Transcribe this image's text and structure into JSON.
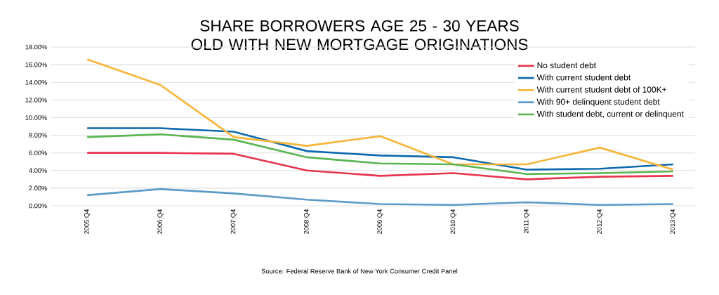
{
  "chart_data": {
    "type": "line",
    "title": "SHARE BORROWERS AGE 25 - 30 YEARS OLD WITH NEW MORTGAGE ORIGINATIONS",
    "categories": [
      "2005:Q4",
      "2006:Q4",
      "2007:Q4",
      "2008:Q4",
      "2009:Q4",
      "2010:Q4",
      "2011:Q4",
      "2012:Q4",
      "2013:Q4"
    ],
    "series": [
      {
        "name": "No student debt",
        "color": "#e8344e",
        "values": [
          6.0,
          6.0,
          5.9,
          4.0,
          3.4,
          3.7,
          3.0,
          3.3,
          3.4
        ]
      },
      {
        "name": "With current student debt",
        "color": "#0d6aae",
        "values": [
          8.8,
          8.8,
          8.4,
          6.2,
          5.7,
          5.5,
          4.1,
          4.2,
          4.7
        ]
      },
      {
        "name": "With current student debt of 100K+",
        "color": "#f7b53a",
        "values": [
          16.6,
          13.7,
          7.8,
          6.8,
          7.9,
          4.7,
          4.7,
          6.6,
          4.1
        ]
      },
      {
        "name": "With 90+ delinquent student debt",
        "color": "#5b9bc8",
        "values": [
          1.2,
          1.9,
          1.4,
          0.7,
          0.2,
          0.1,
          0.4,
          0.1,
          0.2
        ]
      },
      {
        "name": "With student debt, current or delinquent",
        "color": "#5ab552",
        "values": [
          7.8,
          8.1,
          7.5,
          5.5,
          4.8,
          4.7,
          3.6,
          3.7,
          3.9
        ]
      }
    ],
    "ylim": [
      0,
      18
    ],
    "yticks": [
      {
        "value": 0,
        "label": "0.00%"
      },
      {
        "value": 2,
        "label": "2.00%"
      },
      {
        "value": 4,
        "label": "4.00%"
      },
      {
        "value": 6,
        "label": "6.00%"
      },
      {
        "value": 8,
        "label": "8.00%"
      },
      {
        "value": 10,
        "label": "10.00%"
      },
      {
        "value": 12,
        "label": "12.00%"
      },
      {
        "value": 14,
        "label": "14.00%"
      },
      {
        "value": 16,
        "label": "16.00%"
      },
      {
        "value": 18,
        "label": "18.00%"
      }
    ],
    "grid": "y",
    "legend": "top right",
    "marker": "none",
    "line_style": "solid",
    "annotations": [
      "Source: Federal Reserve Bank of New York Consumer Credit Panel"
    ]
  }
}
